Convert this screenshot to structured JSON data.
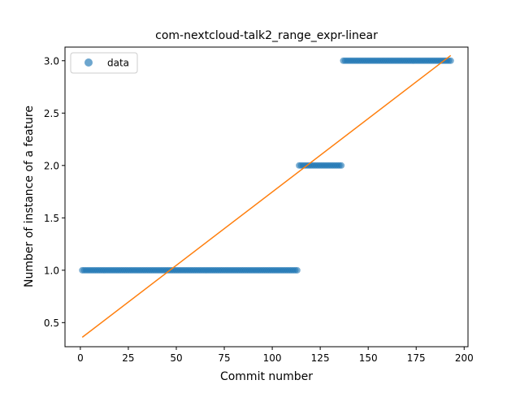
{
  "chart_data": {
    "type": "scatter",
    "title": "com-nextcloud-talk2_range_expr-linear",
    "xlabel": "Commit number",
    "ylabel": "Number of instance of a feature",
    "xlim": [
      -8,
      202
    ],
    "ylim": [
      0.27,
      3.13
    ],
    "xticks": [
      0,
      25,
      50,
      75,
      100,
      125,
      150,
      175,
      200
    ],
    "yticks": [
      0.5,
      1.0,
      1.5,
      2.0,
      2.5,
      3.0
    ],
    "grid": false,
    "legend": {
      "position": "top-left",
      "entries": [
        "data"
      ]
    },
    "series": [
      {
        "name": "data",
        "kind": "scatter",
        "color": "#1f77b4",
        "segments": [
          {
            "x_start": 1,
            "x_end": 113,
            "y": 1.0
          },
          {
            "x_start": 114,
            "x_end": 136,
            "y": 2.0
          },
          {
            "x_start": 137,
            "x_end": 193,
            "y": 3.0
          }
        ]
      },
      {
        "kind": "line",
        "color": "#ff7f0e",
        "x": [
          1,
          193
        ],
        "y": [
          0.36,
          3.05
        ]
      }
    ]
  }
}
